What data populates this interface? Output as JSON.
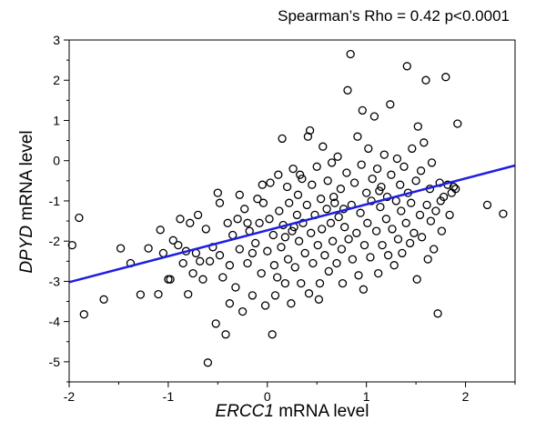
{
  "chart_data": {
    "type": "scatter",
    "annotation": "Spearman’s Rho = 0.42 p<0.0001",
    "xlabel_gene": "ERCC1",
    "xlabel_rest": " mRNA level",
    "ylabel_gene": "DPYD",
    "ylabel_rest": " mRNA level",
    "xlim": [
      -2,
      2.5
    ],
    "ylim": [
      -5.5,
      3
    ],
    "xticks": [
      -2,
      -1,
      0,
      1,
      2
    ],
    "yticks": [
      -5,
      -4,
      -3,
      -2,
      -1,
      0,
      1,
      2,
      3
    ],
    "grid": false,
    "legend": "none",
    "marker_color": "#000000",
    "line_color": "#1f1fe0",
    "regression_line": {
      "x": [
        -2,
        2.5
      ],
      "y": [
        -3.02,
        -0.12
      ]
    },
    "points": [
      [
        -1.97,
        -2.1
      ],
      [
        -1.9,
        -1.42
      ],
      [
        -1.85,
        -3.82
      ],
      [
        -1.65,
        -3.45
      ],
      [
        -1.48,
        -2.18
      ],
      [
        -1.38,
        -2.55
      ],
      [
        -1.28,
        -3.33
      ],
      [
        -1.2,
        -2.18
      ],
      [
        -1.1,
        -3.32
      ],
      [
        -1.08,
        -1.72
      ],
      [
        -1.05,
        -2.3
      ],
      [
        -1.0,
        -2.95
      ],
      [
        -0.98,
        -2.95
      ],
      [
        -0.95,
        -1.98
      ],
      [
        -0.9,
        -2.1
      ],
      [
        -0.88,
        -1.45
      ],
      [
        -0.85,
        -2.55
      ],
      [
        -0.82,
        -2.25
      ],
      [
        -0.8,
        -3.32
      ],
      [
        -0.78,
        -1.55
      ],
      [
        -0.75,
        -2.8
      ],
      [
        -0.72,
        -2.3
      ],
      [
        -0.7,
        -1.35
      ],
      [
        -0.68,
        -2.5
      ],
      [
        -0.65,
        -2.95
      ],
      [
        -0.62,
        -1.7
      ],
      [
        -0.6,
        -5.02
      ],
      [
        -0.58,
        -2.5
      ],
      [
        -0.55,
        -2.15
      ],
      [
        -0.52,
        -4.05
      ],
      [
        -0.5,
        -0.8
      ],
      [
        -0.48,
        -1.05
      ],
      [
        -0.45,
        -2.9
      ],
      [
        -0.42,
        -4.32
      ],
      [
        -0.4,
        -1.55
      ],
      [
        -0.38,
        -2.6
      ],
      [
        -0.35,
        -1.85
      ],
      [
        -0.32,
        -3.15
      ],
      [
        -0.3,
        -1.45
      ],
      [
        -0.28,
        -2.2
      ],
      [
        -0.25,
        -3.75
      ],
      [
        -0.23,
        -1.2
      ],
      [
        -0.2,
        -2.55
      ],
      [
        -0.18,
        -1.75
      ],
      [
        -0.15,
        -3.35
      ],
      [
        -0.12,
        -2.05
      ],
      [
        -0.1,
        -0.95
      ],
      [
        -0.08,
        -1.55
      ],
      [
        -0.06,
        -2.8
      ],
      [
        -0.04,
        -1.05
      ],
      [
        -0.02,
        -3.6
      ],
      [
        0.0,
        -2.25
      ],
      [
        0.02,
        -1.45
      ],
      [
        0.03,
        -0.55
      ],
      [
        0.05,
        -4.32
      ],
      [
        0.06,
        -1.85
      ],
      [
        0.08,
        -3.35
      ],
      [
        0.1,
        -2.9
      ],
      [
        0.11,
        -0.35
      ],
      [
        0.12,
        -1.25
      ],
      [
        0.14,
        -2.15
      ],
      [
        0.15,
        0.55
      ],
      [
        0.16,
        -1.6
      ],
      [
        0.18,
        -3.05
      ],
      [
        0.2,
        -0.65
      ],
      [
        0.21,
        -2.45
      ],
      [
        0.22,
        -1.05
      ],
      [
        0.24,
        -3.55
      ],
      [
        0.25,
        -1.75
      ],
      [
        0.26,
        -0.2
      ],
      [
        0.28,
        -2.65
      ],
      [
        0.3,
        -1.35
      ],
      [
        0.31,
        -0.85
      ],
      [
        0.32,
        -2.0
      ],
      [
        0.34,
        -3.05
      ],
      [
        0.35,
        -0.45
      ],
      [
        0.36,
        -1.55
      ],
      [
        0.38,
        -2.3
      ],
      [
        0.4,
        -1.1
      ],
      [
        0.41,
        0.6
      ],
      [
        0.42,
        -3.3
      ],
      [
        0.44,
        -1.8
      ],
      [
        0.45,
        -0.6
      ],
      [
        0.46,
        -2.55
      ],
      [
        0.48,
        -1.35
      ],
      [
        0.5,
        -0.15
      ],
      [
        0.51,
        -2.1
      ],
      [
        0.52,
        -3.45
      ],
      [
        0.54,
        -0.95
      ],
      [
        0.55,
        -1.7
      ],
      [
        0.56,
        0.35
      ],
      [
        0.58,
        -2.35
      ],
      [
        0.6,
        -1.2
      ],
      [
        0.61,
        -0.5
      ],
      [
        0.62,
        -2.75
      ],
      [
        0.64,
        -1.55
      ],
      [
        0.65,
        -0.05
      ],
      [
        0.66,
        -2.0
      ],
      [
        0.68,
        -1.05
      ],
      [
        0.7,
        -2.55
      ],
      [
        0.71,
        0.1
      ],
      [
        0.72,
        -1.4
      ],
      [
        0.74,
        -0.7
      ],
      [
        0.75,
        -2.2
      ],
      [
        0.76,
        -3.05
      ],
      [
        0.78,
        -1.65
      ],
      [
        0.8,
        -0.3
      ],
      [
        0.81,
        1.75
      ],
      [
        0.82,
        -1.95
      ],
      [
        0.84,
        2.65
      ],
      [
        0.85,
        -1.1
      ],
      [
        0.86,
        -2.45
      ],
      [
        0.88,
        -0.55
      ],
      [
        0.9,
        -1.8
      ],
      [
        0.91,
        0.6
      ],
      [
        0.92,
        -2.85
      ],
      [
        0.94,
        -1.3
      ],
      [
        0.95,
        -0.1
      ],
      [
        0.96,
        1.25
      ],
      [
        0.98,
        -2.1
      ],
      [
        1.0,
        -0.8
      ],
      [
        1.01,
        -1.55
      ],
      [
        1.02,
        0.3
      ],
      [
        1.04,
        -2.4
      ],
      [
        1.05,
        -1.0
      ],
      [
        1.06,
        -0.45
      ],
      [
        1.08,
        1.1
      ],
      [
        1.1,
        -1.75
      ],
      [
        1.11,
        -0.2
      ],
      [
        1.12,
        -2.8
      ],
      [
        1.14,
        -1.15
      ],
      [
        1.15,
        -0.65
      ],
      [
        1.16,
        -2.1
      ],
      [
        1.18,
        0.15
      ],
      [
        1.2,
        -1.45
      ],
      [
        1.21,
        -0.9
      ],
      [
        1.22,
        -2.35
      ],
      [
        1.24,
        1.4
      ],
      [
        1.25,
        -0.35
      ],
      [
        1.26,
        -1.7
      ],
      [
        1.28,
        -2.6
      ],
      [
        1.3,
        -1.0
      ],
      [
        1.31,
        0.05
      ],
      [
        1.32,
        -1.95
      ],
      [
        1.34,
        -0.6
      ],
      [
        1.35,
        -1.25
      ],
      [
        1.36,
        -2.3
      ],
      [
        1.38,
        -0.15
      ],
      [
        1.4,
        -1.55
      ],
      [
        1.41,
        2.35
      ],
      [
        1.42,
        -0.8
      ],
      [
        1.44,
        -2.05
      ],
      [
        1.45,
        -1.05
      ],
      [
        1.46,
        0.3
      ],
      [
        1.48,
        -1.8
      ],
      [
        1.5,
        -0.5
      ],
      [
        1.51,
        -2.95
      ],
      [
        1.52,
        0.85
      ],
      [
        1.54,
        -1.35
      ],
      [
        1.55,
        -0.25
      ],
      [
        1.56,
        -1.9
      ],
      [
        1.58,
        0.45
      ],
      [
        1.6,
        2.0
      ],
      [
        1.61,
        -1.1
      ],
      [
        1.62,
        -2.45
      ],
      [
        1.64,
        -0.7
      ],
      [
        1.65,
        -1.5
      ],
      [
        1.66,
        -0.05
      ],
      [
        1.68,
        -2.2
      ],
      [
        1.7,
        -1.25
      ],
      [
        1.72,
        -3.8
      ],
      [
        1.74,
        -0.55
      ],
      [
        1.75,
        -1.0
      ],
      [
        1.76,
        -1.75
      ],
      [
        1.78,
        -0.9
      ],
      [
        1.8,
        2.08
      ],
      [
        1.82,
        -0.6
      ],
      [
        1.84,
        -1.35
      ],
      [
        1.86,
        -0.8
      ],
      [
        1.88,
        -0.65
      ],
      [
        1.9,
        -0.7
      ],
      [
        1.92,
        0.92
      ],
      [
        2.22,
        -1.1
      ],
      [
        2.38,
        -1.32
      ],
      [
        0.43,
        0.75
      ],
      [
        -0.05,
        -0.6
      ],
      [
        0.33,
        -0.35
      ],
      [
        -0.28,
        -0.85
      ],
      [
        0.67,
        -0.9
      ],
      [
        0.18,
        -1.9
      ],
      [
        0.07,
        -2.6
      ],
      [
        -0.15,
        -2.3
      ],
      [
        0.53,
        -3.05
      ],
      [
        0.77,
        -1.2
      ],
      [
        1.13,
        -0.75
      ],
      [
        0.97,
        -3.2
      ],
      [
        -0.38,
        -3.55
      ],
      [
        0.27,
        -1.65
      ],
      [
        -0.48,
        -2.35
      ],
      [
        -0.2,
        -1.55
      ]
    ]
  }
}
